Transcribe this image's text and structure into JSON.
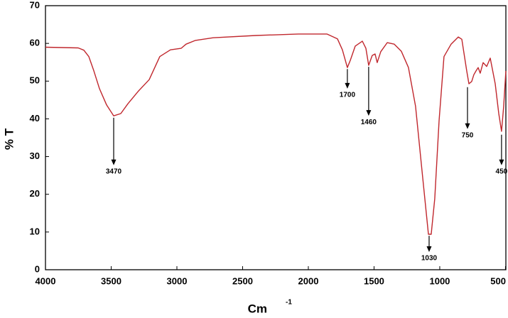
{
  "chart_data": {
    "type": "line",
    "xlabel": "Cm",
    "xlabel_sup": "-1",
    "ylabel": "% T",
    "x": [
      4000,
      3751,
      3708,
      3670,
      3632,
      3589,
      3535,
      3481,
      3427,
      3373,
      3292,
      3211,
      3130,
      3049,
      2968,
      2930,
      2859,
      2724,
      2400,
      2076,
      1859,
      1778,
      1741,
      1703,
      1681,
      1643,
      1589,
      1562,
      1541,
      1514,
      1492,
      1476,
      1449,
      1400,
      1346,
      1292,
      1238,
      1184,
      1130,
      1086,
      1065,
      1038,
      1005,
      968,
      914,
      859,
      832,
      795,
      778,
      757,
      741,
      724,
      708,
      692,
      670,
      643,
      616,
      578,
      551,
      530,
      514,
      497
    ],
    "series": [
      {
        "name": "spectrum",
        "color": "#c0272d",
        "values": [
          59,
          58.8,
          58.2,
          56.5,
          52.7,
          48,
          43.7,
          40.8,
          41.4,
          44,
          47.4,
          50.4,
          56.5,
          58.3,
          58.7,
          59.8,
          60.8,
          61.5,
          62.1,
          62.5,
          62.5,
          61.2,
          58.3,
          53.6,
          55.5,
          59.3,
          60.6,
          58.7,
          54.2,
          56.8,
          57.2,
          54.9,
          57.8,
          60.2,
          59.8,
          57.9,
          53.6,
          43.3,
          24.5,
          9.4,
          9.4,
          18.8,
          39.5,
          56.5,
          59.8,
          61.7,
          61.1,
          52.7,
          49.3,
          49.9,
          51.7,
          52.7,
          53.6,
          52.1,
          54.9,
          53.9,
          56.1,
          49.3,
          41.4,
          36.7,
          43.3,
          52.7
        ]
      }
    ],
    "xlim": [
      4000,
      497
    ],
    "xticks": [
      4000,
      3500,
      3000,
      2500,
      2000,
      1500,
      1000,
      500
    ],
    "ylim": [
      0,
      70
    ],
    "yticks": [
      0,
      10,
      20,
      30,
      40,
      50,
      60,
      70
    ],
    "annotations": [
      {
        "label": "3470",
        "x": 3481,
        "y": 40.3,
        "y_tip": 27.7
      },
      {
        "label": "1700",
        "x": 1703,
        "y": 53.2,
        "y_tip": 48
      },
      {
        "label": "1460",
        "x": 1541,
        "y": 53.8,
        "y_tip": 40.8
      },
      {
        "label": "1030",
        "x": 1081,
        "y": 9,
        "y_tip": 4.7
      },
      {
        "label": "750",
        "x": 789,
        "y": 48.4,
        "y_tip": 37.3
      },
      {
        "label": "450",
        "x": 530,
        "y": 35.8,
        "y_tip": 27.7
      }
    ]
  }
}
